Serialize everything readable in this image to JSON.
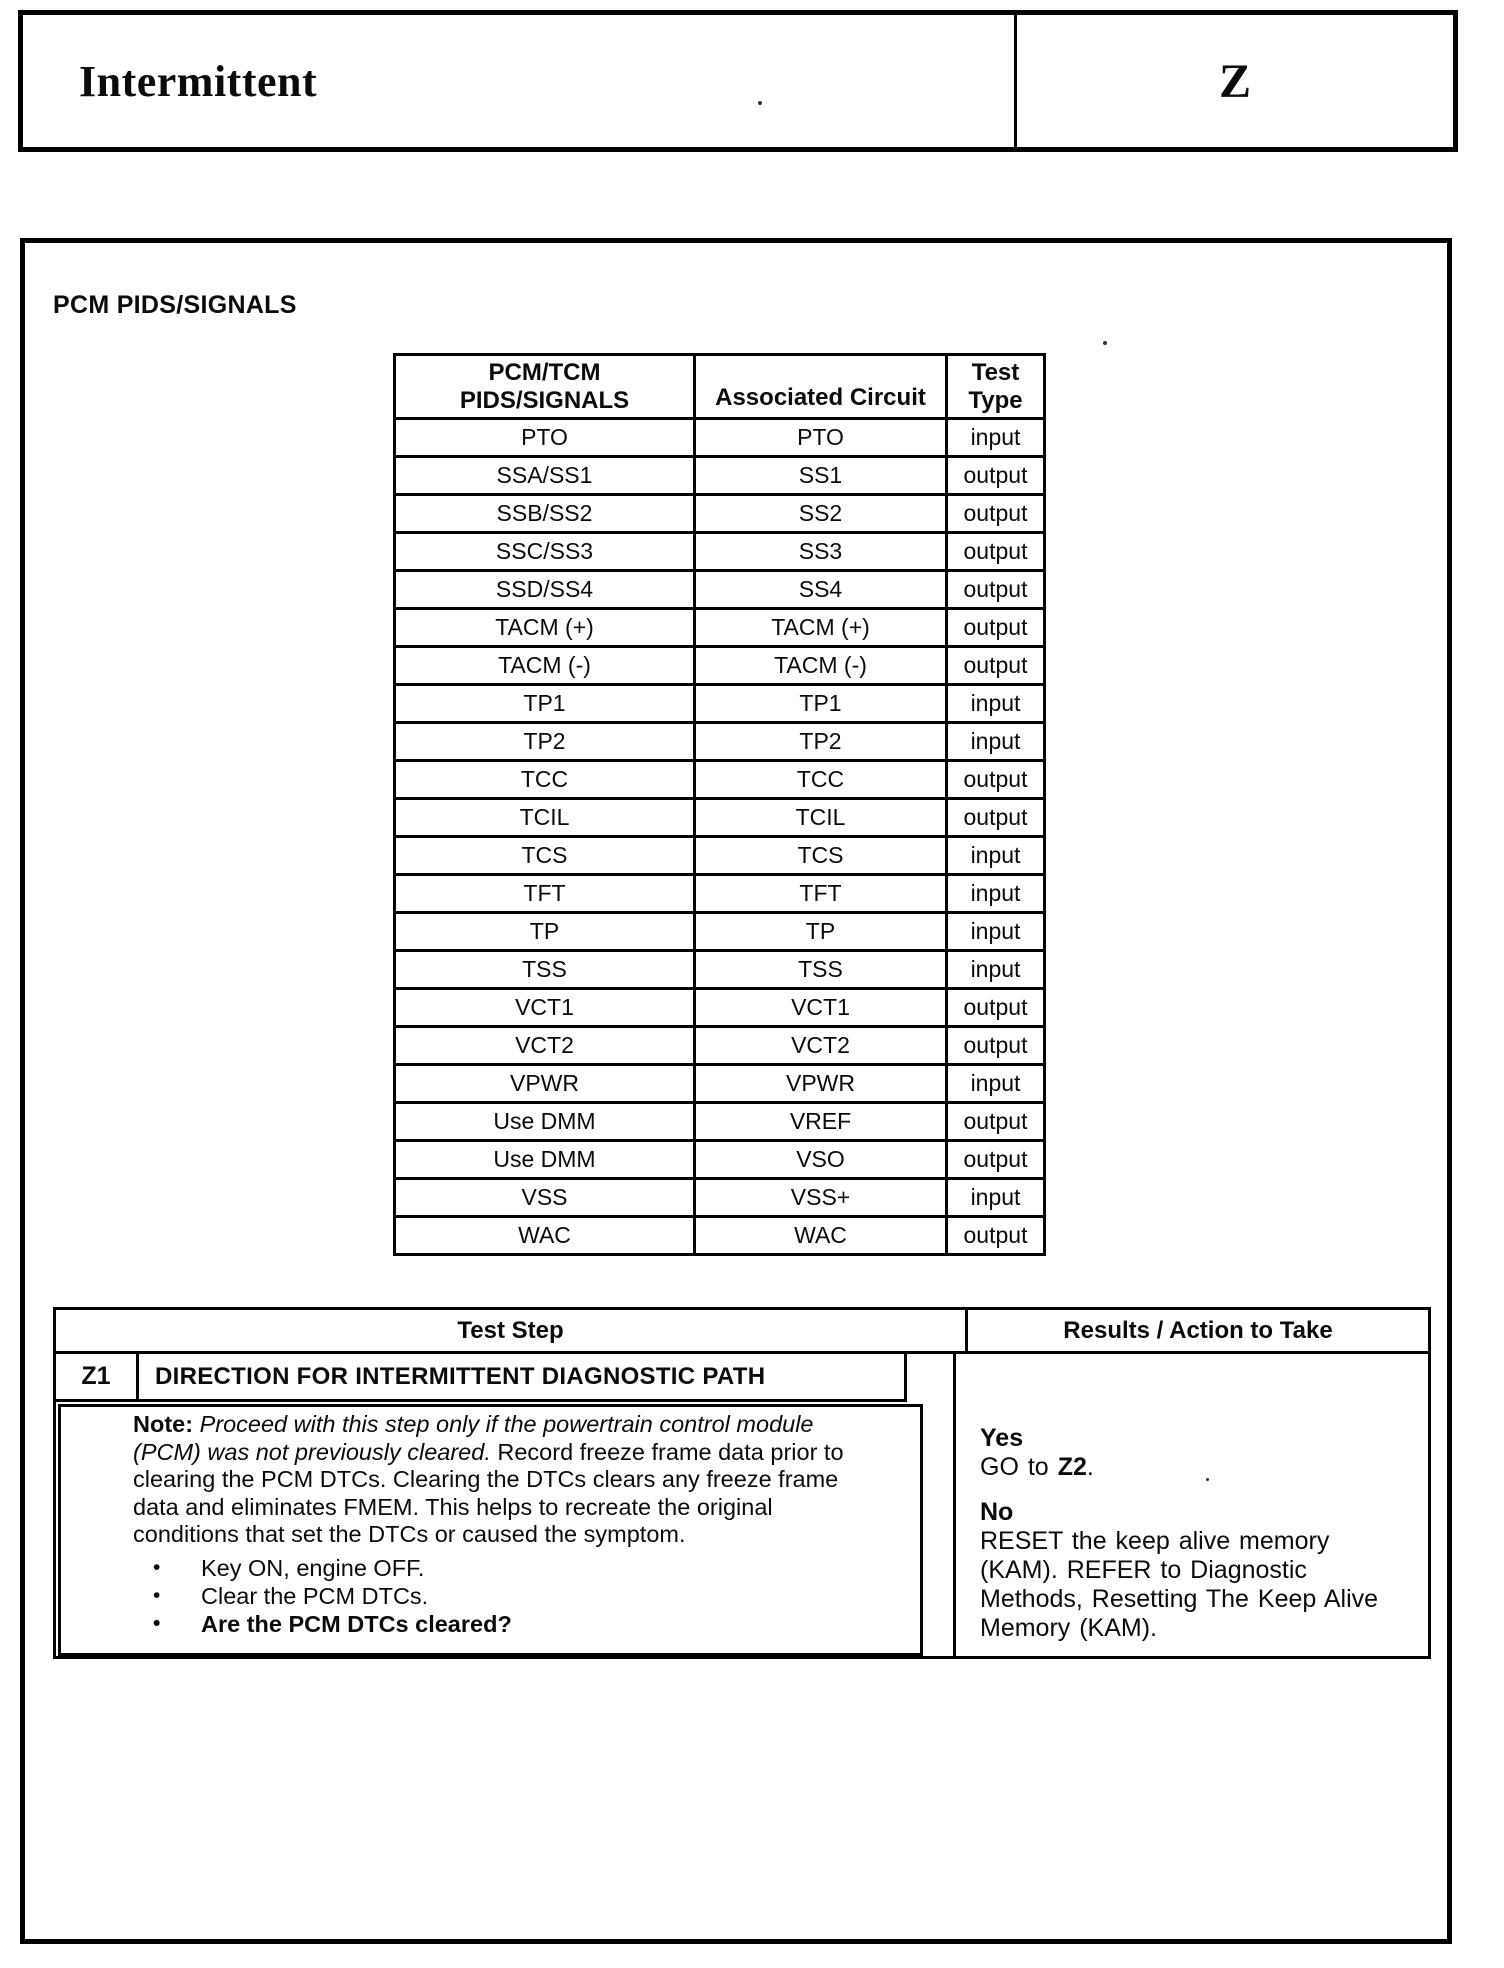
{
  "header": {
    "title": "Intermittent",
    "section_letter": "Z"
  },
  "main": {
    "heading": "PCM PIDS/SIGNALS"
  },
  "pids_table": {
    "headers": {
      "col1_line1": "PCM/TCM",
      "col1_line2": "PIDS/SIGNALS",
      "col2": "Associated Circuit",
      "col3_line1": "Test",
      "col3_line2": "Type"
    },
    "rows": [
      [
        "PTO",
        "PTO",
        "input"
      ],
      [
        "SSA/SS1",
        "SS1",
        "output"
      ],
      [
        "SSB/SS2",
        "SS2",
        "output"
      ],
      [
        "SSC/SS3",
        "SS3",
        "output"
      ],
      [
        "SSD/SS4",
        "SS4",
        "output"
      ],
      [
        "TACM (+)",
        "TACM (+)",
        "output"
      ],
      [
        "TACM (-)",
        "TACM (-)",
        "output"
      ],
      [
        "TP1",
        "TP1",
        "input"
      ],
      [
        "TP2",
        "TP2",
        "input"
      ],
      [
        "TCC",
        "TCC",
        "output"
      ],
      [
        "TCIL",
        "TCIL",
        "output"
      ],
      [
        "TCS",
        "TCS",
        "input"
      ],
      [
        "TFT",
        "TFT",
        "input"
      ],
      [
        "TP",
        "TP",
        "input"
      ],
      [
        "TSS",
        "TSS",
        "input"
      ],
      [
        "VCT1",
        "VCT1",
        "output"
      ],
      [
        "VCT2",
        "VCT2",
        "output"
      ],
      [
        "VPWR",
        "VPWR",
        "input"
      ],
      [
        "Use DMM",
        "VREF",
        "output"
      ],
      [
        "Use DMM",
        "VSO",
        "output"
      ],
      [
        "VSS",
        "VSS+",
        "input"
      ],
      [
        "WAC",
        "WAC",
        "output"
      ]
    ]
  },
  "test_table": {
    "test_step_header": "Test Step",
    "results_header": "Results / Action to Take",
    "step": {
      "id": "Z1",
      "title": "DIRECTION FOR INTERMITTENT DIAGNOSTIC PATH",
      "note_label": "Note:",
      "note_italic": "Proceed with this step only if the powertrain control module (PCM) was not previously cleared.",
      "note_text": "Record freeze frame data prior to clearing the PCM DTCs. Clearing the DTCs clears any freeze frame data and eliminates FMEM. This helps to recreate the original conditions that set the DTCs or caused the symptom.",
      "bullet_marker": "•",
      "bullets": [
        {
          "text": "Key ON, engine OFF.",
          "bold": false
        },
        {
          "text": "Clear the PCM DTCs.",
          "bold": false
        },
        {
          "text": "Are the PCM DTCs cleared?",
          "bold": true
        }
      ]
    },
    "results": {
      "yes_label": "Yes",
      "yes_prefix": "GO to",
      "yes_link": "Z2",
      "yes_suffix": ".",
      "no_label": "No",
      "no_text": "RESET the keep alive memory (KAM). REFER to Diagnostic Methods, Resetting The Keep Alive Memory (KAM)."
    }
  }
}
